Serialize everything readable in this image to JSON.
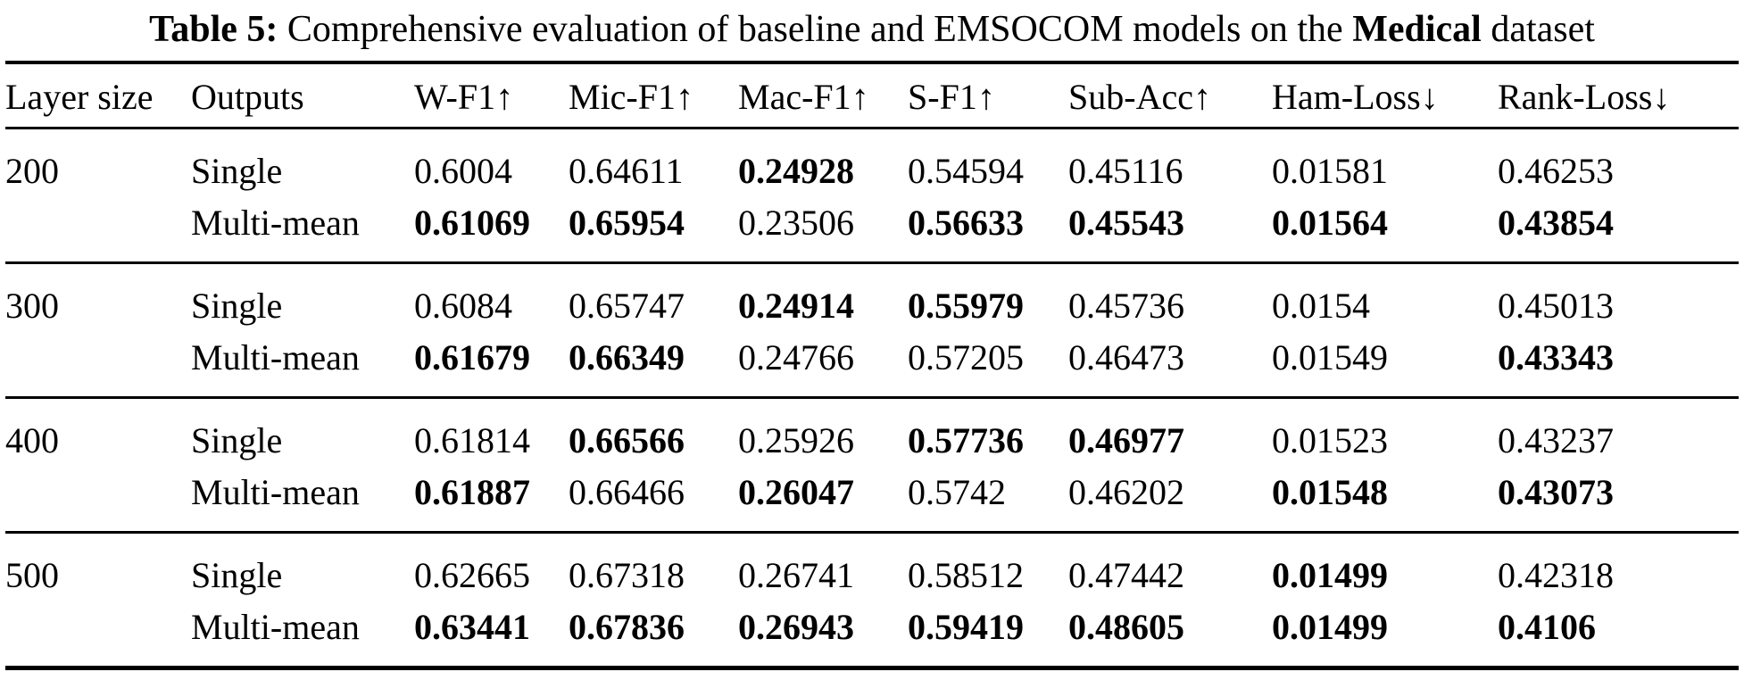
{
  "caption": {
    "segments": [
      {
        "text": "Table 5:",
        "bold": true
      },
      {
        "text": "  Comprehensive evaluation of baseline and EMSOCOM models on the ",
        "bold": false
      },
      {
        "text": "Medical",
        "bold": true
      },
      {
        "text": " dataset",
        "bold": false
      }
    ]
  },
  "table": {
    "columns": [
      "Layer size",
      "Outputs",
      "W-F1↑",
      "Mic-F1↑",
      "Mac-F1↑",
      "S-F1↑",
      "Sub-Acc↑",
      "Ham-Loss↓",
      "Rank-Loss↓"
    ],
    "groups": [
      {
        "layer_size": "200",
        "rows": [
          {
            "outputs": "Single",
            "values": [
              "0.6004",
              "0.64611",
              "0.24928",
              "0.54594",
              "0.45116",
              "0.01581",
              "0.46253"
            ],
            "bold": [
              0,
              0,
              1,
              0,
              0,
              0,
              0
            ]
          },
          {
            "outputs": "Multi-mean",
            "values": [
              "0.61069",
              "0.65954",
              "0.23506",
              "0.56633",
              "0.45543",
              "0.01564",
              "0.43854"
            ],
            "bold": [
              1,
              1,
              0,
              1,
              1,
              1,
              1
            ]
          }
        ]
      },
      {
        "layer_size": "300",
        "rows": [
          {
            "outputs": "Single",
            "values": [
              "0.6084",
              "0.65747",
              "0.24914",
              "0.55979",
              "0.45736",
              "0.0154",
              "0.45013"
            ],
            "bold": [
              0,
              0,
              1,
              1,
              0,
              0,
              0
            ]
          },
          {
            "outputs": "Multi-mean",
            "values": [
              "0.61679",
              "0.66349",
              "0.24766",
              "0.57205",
              "0.46473",
              "0.01549",
              "0.43343"
            ],
            "bold": [
              1,
              1,
              0,
              0,
              0,
              0,
              1
            ]
          }
        ]
      },
      {
        "layer_size": "400",
        "rows": [
          {
            "outputs": "Single",
            "values": [
              "0.61814",
              "0.66566",
              "0.25926",
              "0.57736",
              "0.46977",
              "0.01523",
              "0.43237"
            ],
            "bold": [
              0,
              1,
              0,
              1,
              1,
              0,
              0
            ]
          },
          {
            "outputs": "Multi-mean",
            "values": [
              "0.61887",
              "0.66466",
              "0.26047",
              "0.5742",
              "0.46202",
              "0.01548",
              "0.43073"
            ],
            "bold": [
              1,
              0,
              1,
              0,
              0,
              1,
              1
            ]
          }
        ]
      },
      {
        "layer_size": "500",
        "rows": [
          {
            "outputs": "Single",
            "values": [
              "0.62665",
              "0.67318",
              "0.26741",
              "0.58512",
              "0.47442",
              "0.01499",
              "0.42318"
            ],
            "bold": [
              0,
              0,
              0,
              0,
              0,
              1,
              0
            ]
          },
          {
            "outputs": "Multi-mean",
            "values": [
              "0.63441",
              "0.67836",
              "0.26943",
              "0.59419",
              "0.48605",
              "0.01499",
              "0.4106"
            ],
            "bold": [
              1,
              1,
              1,
              1,
              1,
              1,
              1
            ]
          }
        ]
      }
    ]
  },
  "chart_data": {
    "type": "table",
    "title": "Table 5: Comprehensive evaluation of baseline and EMSOCOM models on the Medical dataset",
    "columns": [
      "Layer size",
      "Outputs",
      "W-F1",
      "Mic-F1",
      "Mac-F1",
      "S-F1",
      "Sub-Acc",
      "Ham-Loss",
      "Rank-Loss"
    ],
    "rows": [
      [
        "200",
        "Single",
        0.6004,
        0.64611,
        0.24928,
        0.54594,
        0.45116,
        0.01581,
        0.46253
      ],
      [
        "200",
        "Multi-mean",
        0.61069,
        0.65954,
        0.23506,
        0.56633,
        0.45543,
        0.01564,
        0.43854
      ],
      [
        "300",
        "Single",
        0.6084,
        0.65747,
        0.24914,
        0.55979,
        0.45736,
        0.0154,
        0.45013
      ],
      [
        "300",
        "Multi-mean",
        0.61679,
        0.66349,
        0.24766,
        0.57205,
        0.46473,
        0.01549,
        0.43343
      ],
      [
        "400",
        "Single",
        0.61814,
        0.66566,
        0.25926,
        0.57736,
        0.46977,
        0.01523,
        0.43237
      ],
      [
        "400",
        "Multi-mean",
        0.61887,
        0.66466,
        0.26047,
        0.5742,
        0.46202,
        0.01548,
        0.43073
      ],
      [
        "500",
        "Single",
        0.62665,
        0.67318,
        0.26741,
        0.58512,
        0.47442,
        0.01499,
        0.42318
      ],
      [
        "500",
        "Multi-mean",
        0.63441,
        0.67836,
        0.26943,
        0.59419,
        0.48605,
        0.01499,
        0.4106
      ]
    ]
  }
}
